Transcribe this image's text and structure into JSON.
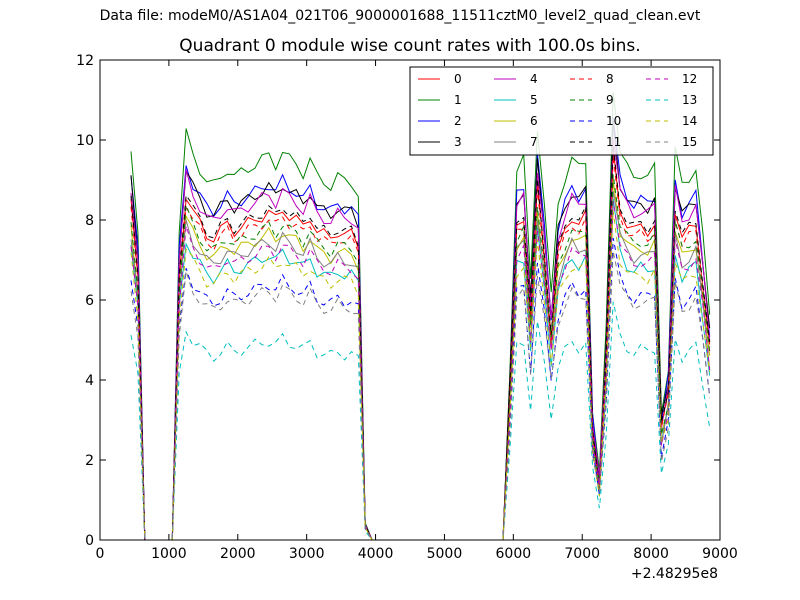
{
  "figure": {
    "suptitle": "Data file: modeM0/AS1A04_021T06_9000001688_11511cztM0_level2_quad_clean.evt",
    "title": "Quadrant 0 module wise count rates with 100.0s bins.",
    "x_offset_label": "+2.48295e8"
  },
  "chart_data": {
    "type": "line",
    "title": "Quadrant 0 module wise count rates with 100.0s bins.",
    "xlabel": "",
    "ylabel": "",
    "x_offset": 248295000,
    "xlim": [
      0,
      9000
    ],
    "ylim": [
      0,
      12
    ],
    "x_ticks": [
      "0",
      "1000",
      "2000",
      "3000",
      "4000",
      "5000",
      "6000",
      "7000",
      "8000",
      "9000"
    ],
    "y_ticks": [
      "0",
      "2",
      "4",
      "6",
      "8",
      "10",
      "12"
    ],
    "grid": false,
    "legend_position": "upper right",
    "legend_columns": 4,
    "series": [
      {
        "name": "0",
        "color": "#ff0000",
        "style": "solid"
      },
      {
        "name": "1",
        "color": "#008000",
        "style": "solid"
      },
      {
        "name": "2",
        "color": "#0000ff",
        "style": "solid"
      },
      {
        "name": "3",
        "color": "#000000",
        "style": "solid"
      },
      {
        "name": "4",
        "color": "#bf00bf",
        "style": "solid"
      },
      {
        "name": "5",
        "color": "#00bfbf",
        "style": "solid"
      },
      {
        "name": "6",
        "color": "#bfbf00",
        "style": "solid"
      },
      {
        "name": "7",
        "color": "#808080",
        "style": "solid"
      },
      {
        "name": "8",
        "color": "#ff0000",
        "style": "dashed"
      },
      {
        "name": "9",
        "color": "#008000",
        "style": "dashed"
      },
      {
        "name": "10",
        "color": "#0000ff",
        "style": "dashed"
      },
      {
        "name": "11",
        "color": "#000000",
        "style": "dashed"
      },
      {
        "name": "12",
        "color": "#bf00bf",
        "style": "dashed"
      },
      {
        "name": "13",
        "color": "#00bfbf",
        "style": "dashed"
      },
      {
        "name": "14",
        "color": "#bfbf00",
        "style": "dashed"
      },
      {
        "name": "15",
        "color": "#808080",
        "style": "dashed"
      }
    ],
    "segments": [
      {
        "x": [
          450,
          550,
          650
        ],
        "base": [
          9.1,
          7.2,
          0.0
        ],
        "gap_after": true
      },
      {
        "x": [
          1050,
          1150,
          1250,
          1350,
          1450,
          1550,
          1650,
          1750,
          1850,
          1950,
          2050,
          2150,
          2250,
          2350,
          2450,
          2550,
          2650,
          2750,
          2850,
          2950,
          3050,
          3150,
          3250,
          3350,
          3450,
          3550,
          3650,
          3750,
          3850,
          3950
        ],
        "base": [
          0.0,
          7.2,
          9.4,
          8.9,
          8.6,
          8.3,
          8.2,
          8.4,
          8.6,
          8.4,
          8.5,
          8.6,
          8.7,
          8.8,
          8.9,
          8.7,
          9.0,
          8.8,
          8.7,
          8.5,
          8.8,
          8.4,
          8.3,
          8.2,
          8.4,
          8.3,
          8.3,
          8.0,
          0.4,
          0.0
        ]
      },
      {
        "x": [
          4050,
          4550,
          5050,
          5550,
          5850
        ],
        "base": [
          0.0,
          0.0,
          0.0,
          0.0,
          0.0
        ]
      },
      {
        "x": [
          5950,
          6050,
          6150,
          6250,
          6350,
          6450,
          6550,
          6650,
          6750,
          6850,
          6950,
          7050,
          7150,
          7250,
          7350,
          7450,
          7550,
          7650,
          7750,
          7850,
          7950,
          8050,
          8150,
          8250,
          8350,
          8450,
          8550,
          8650,
          8750,
          8850
        ],
        "base": [
          4.0,
          8.6,
          8.8,
          6.0,
          9.6,
          7.8,
          5.6,
          7.8,
          8.4,
          8.8,
          8.6,
          8.8,
          3.0,
          1.5,
          5.0,
          10.5,
          9.0,
          8.6,
          8.4,
          8.5,
          8.4,
          8.6,
          3.0,
          4.0,
          9.0,
          8.2,
          8.4,
          8.6,
          7.0,
          5.2
        ]
      }
    ],
    "module_scale": [
      0.92,
      1.08,
      1.0,
      0.99,
      0.97,
      0.8,
      0.86,
      0.84,
      0.9,
      0.88,
      0.72,
      0.93,
      0.82,
      0.56,
      0.78,
      0.7
    ]
  }
}
